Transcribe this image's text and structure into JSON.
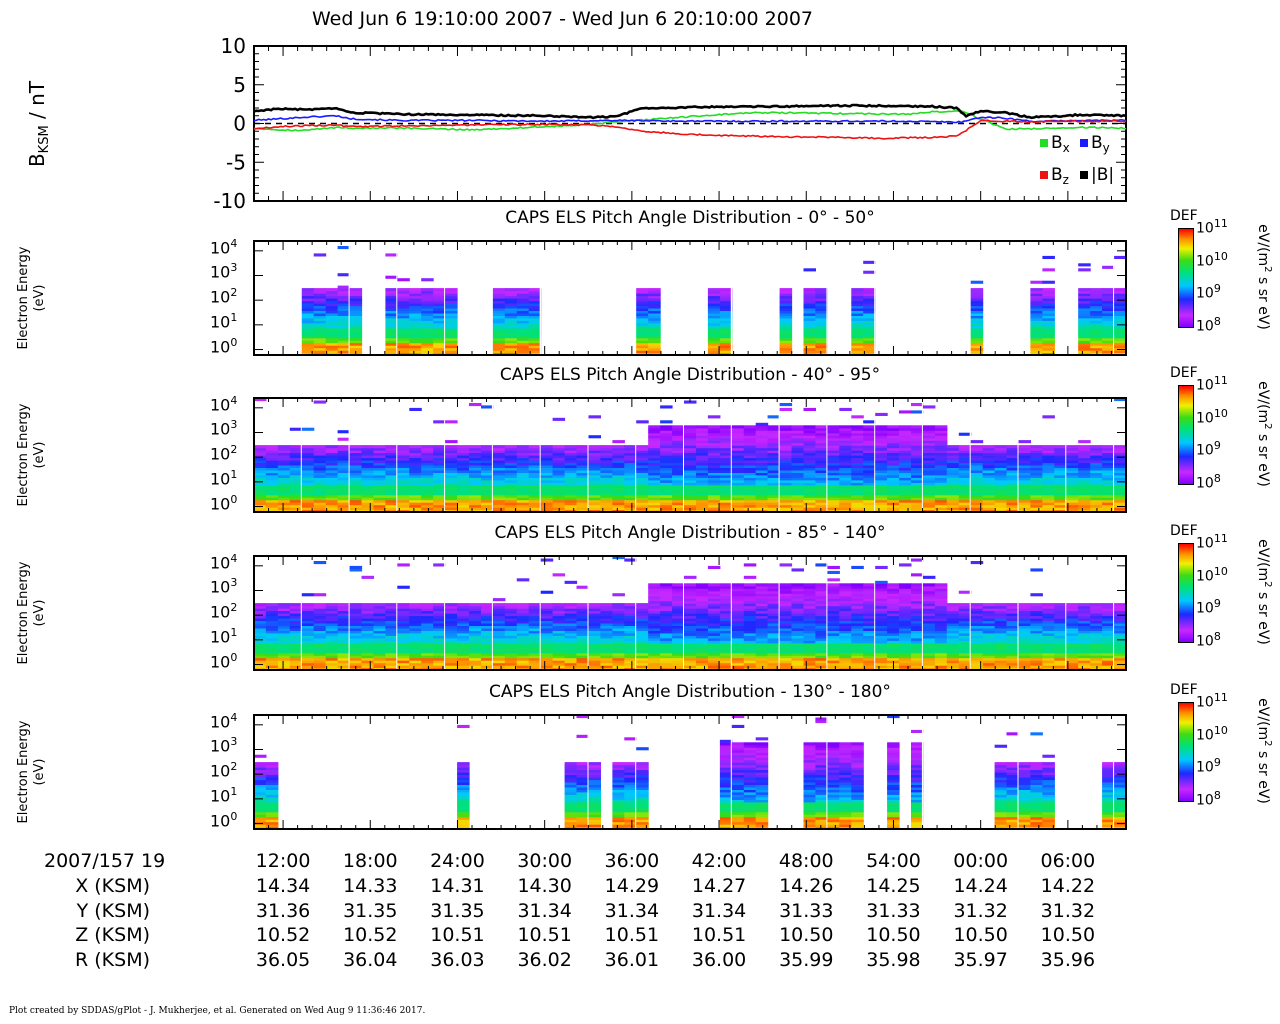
{
  "title": "Wed Jun 6 19:10:00 2007 - Wed Jun 6 20:10:00 2007",
  "mag_panel": {
    "ylabel_main": "B",
    "ylabel_sub": "KSM",
    "ylabel_unit": " / nT",
    "yticks": [
      "10",
      "5",
      "0",
      "-5",
      "-10"
    ],
    "legend": [
      {
        "name": "B",
        "sub": "x",
        "color": "#22dd22"
      },
      {
        "name": "B",
        "sub": "y",
        "color": "#1a1aff"
      },
      {
        "name": "B",
        "sub": "z",
        "color": "#ee1111"
      },
      {
        "name": "|B|",
        "sub": "",
        "color": "#000000"
      }
    ]
  },
  "spectrograms": [
    {
      "title": "CAPS ELS Pitch Angle Distribution - 0° - 50°",
      "seed": 11,
      "gaps": [
        [
          0,
          4.2
        ],
        [
          6.6,
          7.1
        ],
        [
          9.2,
          10.6
        ],
        [
          16.8,
          20.0
        ],
        [
          23.6,
          32.0
        ],
        [
          34.0,
          38.2
        ],
        [
          40.0,
          44.0
        ],
        [
          45.0,
          45.7
        ],
        [
          47.6,
          50.2
        ],
        [
          51.6,
          59.8
        ],
        [
          61.0,
          64.6
        ],
        [
          66.6,
          69.5
        ],
        [
          69.8,
          69.95
        ],
        [
          72.0,
          72.2
        ],
        [
          72.4,
          72.5
        ]
      ]
    },
    {
      "title": "CAPS ELS Pitch Angle Distribution - 40° - 95°",
      "seed": 23,
      "gaps": []
    },
    {
      "title": "CAPS ELS Pitch Angle Distribution - 85° - 140°",
      "seed": 37,
      "gaps": []
    },
    {
      "title": "CAPS ELS Pitch Angle Distribution - 130° - 180°",
      "seed": 53,
      "gaps": [
        [
          1.8,
          16.8
        ],
        [
          17.8,
          26.4
        ],
        [
          29.0,
          29.8
        ],
        [
          33.0,
          38.6
        ],
        [
          43.4,
          46.0
        ],
        [
          50.6,
          52.8
        ],
        [
          54.2,
          55.2
        ],
        [
          56.0,
          56.6
        ],
        [
          57.2,
          62.4
        ],
        [
          67.2,
          68.6
        ],
        [
          69.5,
          70.8
        ],
        [
          71.6,
          72.0
        ]
      ]
    }
  ],
  "spec_axis": {
    "ylabel_line1": "Electron Energy",
    "ylabel_line2": "(eV)",
    "yticks": [
      {
        "base": "10",
        "exp": "4"
      },
      {
        "base": "10",
        "exp": "3"
      },
      {
        "base": "10",
        "exp": "2"
      },
      {
        "base": "10",
        "exp": "1"
      },
      {
        "base": "10",
        "exp": "0"
      }
    ]
  },
  "colorbar": {
    "label": "DEF",
    "unit_parts": [
      "eV/(m",
      "2",
      " s sr eV)"
    ],
    "ticks": [
      {
        "base": "10",
        "exp": "11"
      },
      {
        "base": "10",
        "exp": "10"
      },
      {
        "base": "10",
        "exp": "9"
      },
      {
        "base": "10",
        "exp": "8"
      }
    ]
  },
  "x_axis": {
    "row_labels": [
      "2007/157 19",
      "X (KSM)",
      "Y (KSM)",
      "Z (KSM)",
      "R (KSM)"
    ],
    "time_labels": [
      "12:00",
      "18:00",
      "24:00",
      "30:00",
      "36:00",
      "42:00",
      "48:00",
      "54:00",
      "00:00",
      "06:00"
    ],
    "ephemeris": [
      [
        "14.34",
        "14.33",
        "14.31",
        "14.30",
        "14.29",
        "14.27",
        "14.26",
        "14.25",
        "14.24",
        "14.22"
      ],
      [
        "31.36",
        "31.35",
        "31.35",
        "31.34",
        "31.34",
        "31.34",
        "31.33",
        "31.33",
        "31.32",
        "31.32"
      ],
      [
        "10.52",
        "10.52",
        "10.51",
        "10.51",
        "10.51",
        "10.51",
        "10.50",
        "10.50",
        "10.50",
        "10.50"
      ],
      [
        "36.05",
        "36.04",
        "36.03",
        "36.02",
        "36.01",
        "36.00",
        "35.99",
        "35.98",
        "35.97",
        "35.96"
      ]
    ]
  },
  "footer": "Plot created by SDDAS/gPlot - J. Mukherjee, et al.  Generated on Wed Aug 9 11:36:46 2017.",
  "chart_data": [
    {
      "type": "line",
      "title": "",
      "ylabel": "BKSM / nT",
      "ylim": [
        -10,
        10
      ],
      "xlim_seconds_after_1910": [
        0,
        3600
      ],
      "grid": false,
      "legend_position": "bottom-right",
      "series": [
        {
          "name": "Bx",
          "color": "#22dd22",
          "x": [
            0,
            100,
            200,
            340,
            400,
            600,
            900,
            1000,
            1200,
            1300,
            1500,
            1800,
            2000,
            2100,
            2400,
            2700,
            2800,
            2920,
            3000,
            3100,
            3200,
            3300,
            3400,
            3600
          ],
          "y": [
            -0.6,
            -0.8,
            -0.9,
            -0.5,
            -0.6,
            -0.6,
            -0.8,
            -0.7,
            -0.4,
            -0.3,
            0.2,
            0.9,
            1.3,
            1.4,
            1.3,
            1.2,
            1.5,
            1.6,
            0.6,
            -0.7,
            -0.7,
            -0.6,
            -0.5,
            -0.6
          ]
        },
        {
          "name": "By",
          "color": "#1a1aff",
          "x": [
            0,
            100,
            200,
            340,
            400,
            600,
            900,
            1200,
            1500,
            1800,
            2000,
            2400,
            2700,
            2860,
            2920,
            3000,
            3100,
            3200,
            3300,
            3400,
            3600
          ],
          "y": [
            0.4,
            0.6,
            0.8,
            1.0,
            0.6,
            0.4,
            0.4,
            0.3,
            0.4,
            0.3,
            0.3,
            0.3,
            0.3,
            0.2,
            0.2,
            0.8,
            0.7,
            0.3,
            0.3,
            0.4,
            0.4
          ]
        },
        {
          "name": "Bz",
          "color": "#ee1111",
          "x": [
            0,
            100,
            200,
            340,
            400,
            600,
            900,
            1200,
            1400,
            1500,
            1600,
            1800,
            2000,
            2200,
            2400,
            2600,
            2800,
            2900,
            2940,
            3000,
            3100,
            3200,
            3300,
            3400,
            3600
          ],
          "y": [
            -0.7,
            -0.4,
            -0.3,
            -0.2,
            -0.4,
            -0.3,
            -0.2,
            -0.1,
            -0.2,
            -0.4,
            -1.0,
            -1.4,
            -1.6,
            -1.7,
            -1.8,
            -1.9,
            -1.8,
            -1.6,
            -0.9,
            0.4,
            0.3,
            0.2,
            0.3,
            0.3,
            0.3
          ]
        },
        {
          "name": "|B|",
          "color": "#000000",
          "x": [
            0,
            100,
            200,
            340,
            400,
            600,
            900,
            1200,
            1400,
            1500,
            1560,
            1600,
            1800,
            2000,
            2200,
            2400,
            2600,
            2800,
            2900,
            2940,
            3000,
            3100,
            3200,
            3300,
            3400,
            3600
          ],
          "y": [
            1.6,
            1.9,
            1.8,
            1.9,
            1.4,
            1.2,
            1.1,
            1.0,
            0.8,
            0.9,
            1.6,
            1.9,
            2.1,
            2.2,
            2.2,
            2.3,
            2.3,
            2.2,
            2.0,
            1.0,
            1.6,
            1.4,
            0.8,
            0.9,
            1.1,
            1.0
          ]
        }
      ]
    },
    {
      "type": "heatmap",
      "title": "CAPS ELS Pitch Angle Distribution - 0° - 50°",
      "ylabel": "Electron Energy (eV)",
      "ylim": [
        0.6,
        25000
      ],
      "y_scale": "log",
      "colorbar": {
        "label": "DEF",
        "range": [
          100000000.0,
          100000000000.0
        ],
        "scale": "log",
        "unit": "eV/(m2 s sr eV)"
      }
    },
    {
      "type": "heatmap",
      "title": "CAPS ELS Pitch Angle Distribution - 40° - 95°",
      "ylabel": "Electron Energy (eV)",
      "ylim": [
        0.6,
        25000
      ],
      "y_scale": "log",
      "colorbar": {
        "label": "DEF",
        "range": [
          100000000.0,
          100000000000.0
        ],
        "scale": "log",
        "unit": "eV/(m2 s sr eV)"
      }
    },
    {
      "type": "heatmap",
      "title": "CAPS ELS Pitch Angle Distribution - 85° - 140°",
      "ylabel": "Electron Energy (eV)",
      "ylim": [
        0.6,
        25000
      ],
      "y_scale": "log",
      "colorbar": {
        "label": "DEF",
        "range": [
          100000000.0,
          100000000000.0
        ],
        "scale": "log",
        "unit": "eV/(m2 s sr eV)"
      }
    },
    {
      "type": "heatmap",
      "title": "CAPS ELS Pitch Angle Distribution - 130° - 180°",
      "ylabel": "Electron Energy (eV)",
      "ylim": [
        0.6,
        25000
      ],
      "y_scale": "log",
      "colorbar": {
        "label": "DEF",
        "range": [
          100000000.0,
          100000000000.0
        ],
        "scale": "log",
        "unit": "eV/(m2 s sr eV)"
      }
    }
  ]
}
